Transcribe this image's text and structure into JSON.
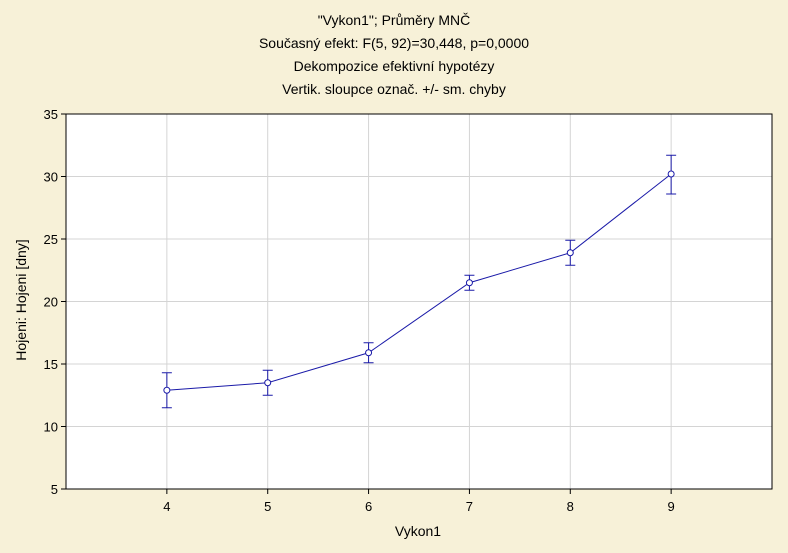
{
  "chart_data": {
    "type": "line",
    "title_lines": [
      "\"Vykon1\"; Průměry MNČ",
      "Současný efekt: F(5, 92)=30,448, p=0,0000",
      "Dekompozice efektivní hypotézy",
      "Vertik. sloupce označ. +/- sm. chyby"
    ],
    "xlabel": "Vykon1",
    "ylabel": "Hojeni: Hojeni [dny]",
    "x_categories": [
      "4",
      "5",
      "6",
      "7",
      "8",
      "9"
    ],
    "xlim": [
      3,
      10
    ],
    "ylim": [
      5,
      35
    ],
    "y_ticks": [
      5,
      10,
      15,
      20,
      25,
      30,
      35
    ],
    "y_tick_labels": [
      "5",
      "10",
      "15",
      "20",
      "25",
      "30",
      "35"
    ],
    "grid": true,
    "series": [
      {
        "x": [
          4,
          5,
          6,
          7,
          8,
          9
        ],
        "values": [
          12.9,
          13.5,
          15.9,
          21.5,
          23.9,
          30.2
        ],
        "error_low": [
          11.5,
          12.5,
          15.1,
          20.9,
          22.9,
          28.6
        ],
        "error_high": [
          14.3,
          14.5,
          16.7,
          22.1,
          24.9,
          31.7
        ]
      }
    ],
    "colors": {
      "background": "#f7f1d8",
      "plot_background": "#ffffff",
      "series": "#1a1aa8",
      "grid": "#d4d4d4"
    }
  }
}
